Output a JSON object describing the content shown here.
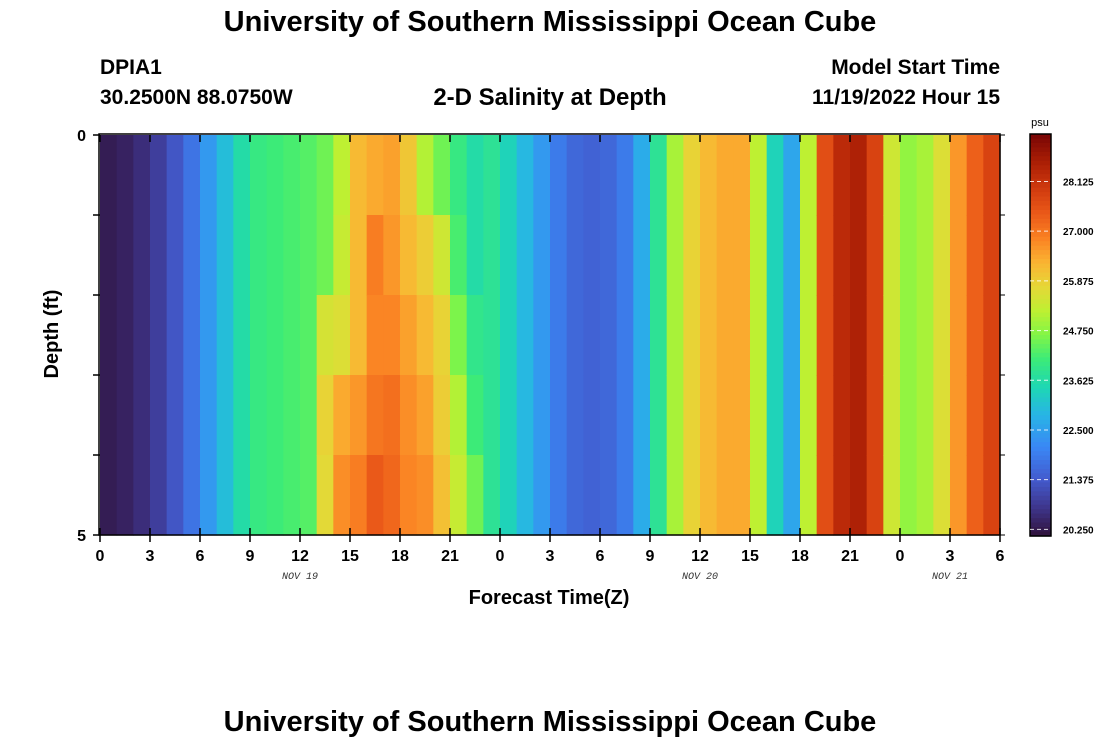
{
  "header": {
    "title": "University of Southern Mississippi Ocean Cube",
    "station_id": "DPIA1",
    "station_coords": "30.2500N  88.0750W",
    "plot_title": "2-D Salinity at Depth",
    "model_start_label": "Model Start Time",
    "model_start_value": "11/19/2022 Hour 15"
  },
  "footer": {
    "title": "University of Southern Mississippi Ocean Cube"
  },
  "chart_data": {
    "type": "heatmap",
    "title": "2-D Salinity at Depth",
    "xlabel": "Forecast Time(Z)",
    "ylabel": "Depth (ft)",
    "x_ticks": [
      "0",
      "3",
      "6",
      "9",
      "12",
      "15",
      "18",
      "21",
      "0",
      "3",
      "6",
      "9",
      "12",
      "15",
      "18",
      "21",
      "0",
      "3",
      "6"
    ],
    "date_labels": [
      {
        "label": "NOV 19",
        "at_hour": 12
      },
      {
        "label": "NOV 20",
        "at_hour": 36
      },
      {
        "label": "NOV 21",
        "at_hour": 51
      }
    ],
    "x_range_hours": [
      0,
      54
    ],
    "y_ticks": [
      "0",
      "5"
    ],
    "y_range": [
      0,
      5
    ],
    "colorbar": {
      "unit": "psu",
      "range": [
        20.1,
        29.2
      ],
      "tick_values": [
        20.25,
        21.375,
        22.5,
        23.625,
        24.75,
        25.875,
        27.0,
        28.125
      ],
      "tick_labels": [
        "20.250",
        "21.375",
        "22.500",
        "23.625",
        "24.750",
        "25.875",
        "27.000",
        "28.125"
      ]
    },
    "depth_bands": 5,
    "base_profile_by_hour": [
      20.3,
      20.4,
      20.6,
      20.9,
      21.3,
      21.8,
      22.4,
      23.0,
      23.6,
      24.0,
      24.1,
      24.2,
      24.3,
      24.5,
      25.2,
      26.2,
      26.4,
      26.2,
      25.8,
      25.3,
      24.8,
      24.4,
      24.1,
      23.8,
      23.4,
      22.9,
      22.4,
      21.9,
      21.6,
      21.5,
      21.6,
      21.9,
      22.7,
      23.8,
      25.0,
      25.8,
      26.2,
      26.4,
      26.4,
      25.2,
      23.4,
      22.6,
      25.2,
      27.6,
      28.3,
      28.5,
      27.8,
      25.4,
      24.8,
      25.0,
      25.6,
      26.6,
      27.3,
      27.8,
      28.2
    ],
    "depth_anomaly_hours_12_to_23": [
      [
        0.0,
        0.0,
        0.0,
        0.0,
        0.0
      ],
      [
        0.0,
        0.0,
        1.0,
        1.3,
        1.2
      ],
      [
        0.0,
        0.1,
        0.4,
        1.2,
        1.5
      ],
      [
        0.0,
        0.0,
        0.0,
        0.4,
        0.7
      ],
      [
        0.0,
        0.5,
        0.4,
        0.6,
        1.0
      ],
      [
        0.3,
        0.4,
        0.6,
        0.9,
        1.0
      ],
      [
        0.2,
        0.4,
        0.7,
        0.9,
        1.0
      ],
      [
        -0.2,
        0.6,
        0.9,
        1.2,
        1.4
      ],
      [
        -0.3,
        0.6,
        1.0,
        1.1,
        1.3
      ],
      [
        -0.4,
        -0.2,
        0.2,
        0.7,
        0.9
      ],
      [
        -0.5,
        -0.5,
        -0.2,
        0.0,
        0.4
      ],
      [
        0.0,
        0.0,
        0.0,
        0.0,
        0.0
      ]
    ]
  }
}
